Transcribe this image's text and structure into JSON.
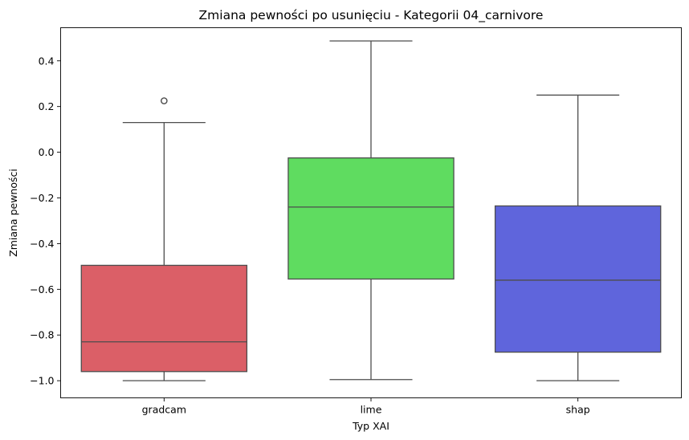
{
  "chart_data": {
    "type": "boxplot",
    "title": "Zmiana pewności po usunięciu - Kategorii 04_carnivore",
    "xlabel": "Typ XAI",
    "ylabel": "Zmiana pewności",
    "ylim": [
      -1.075,
      0.545
    ],
    "yticks": [
      "0.4",
      "0.2",
      "0.0",
      "−0.2",
      "−0.4",
      "−0.6",
      "−0.8",
      "−1.0"
    ],
    "ytick_values": [
      0.4,
      0.2,
      0.0,
      -0.2,
      -0.4,
      -0.6,
      -0.8,
      -1.0
    ],
    "categories": [
      "gradcam",
      "lime",
      "shap"
    ],
    "grid": false,
    "boxes": [
      {
        "name": "gradcam",
        "whisker_low": -1.0,
        "q1": -0.96,
        "median": -0.83,
        "q3": -0.495,
        "whisker_high": 0.13,
        "outliers": [
          0.225
        ],
        "color": "#db5f67"
      },
      {
        "name": "lime",
        "whisker_low": -0.995,
        "q1": -0.555,
        "median": -0.24,
        "q3": -0.025,
        "whisker_high": 0.487,
        "outliers": [],
        "color": "#5fdc60"
      },
      {
        "name": "shap",
        "whisker_low": -1.0,
        "q1": -0.875,
        "median": -0.56,
        "q3": -0.235,
        "whisker_high": 0.25,
        "outliers": [],
        "color": "#5f65dc"
      }
    ]
  }
}
